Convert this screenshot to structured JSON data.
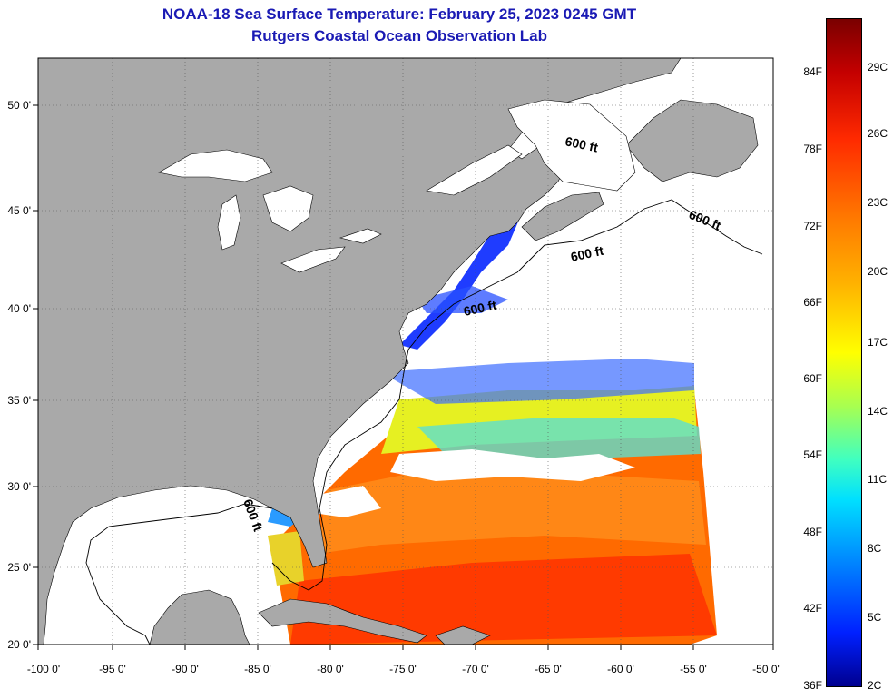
{
  "title": {
    "line1": "NOAA-18 Sea Surface Temperature:  February 25, 2023 0245 GMT",
    "line2": "Rutgers Coastal Ocean Observation Lab"
  },
  "map": {
    "lat_labels": [
      "50 0'",
      "45 0'",
      "40 0'",
      "35 0'",
      "30 0'",
      "25 0'",
      "20 0'"
    ],
    "lon_labels": [
      "-100 0'",
      "-95 0'",
      "-90 0'",
      "-85 0'",
      "-80 0'",
      "-75 0'",
      "-70 0'",
      "-65 0'",
      "-60 0'",
      "-55 0'",
      "-50 0'"
    ],
    "isobath_label": "600 ft",
    "colors": {
      "land": "#a9a9a9",
      "cloud": "#ffffff",
      "grid": "#555555"
    }
  },
  "colorbar": {
    "fahrenheit": [
      "84F",
      "78F",
      "72F",
      "66F",
      "60F",
      "54F",
      "48F",
      "42F",
      "36F"
    ],
    "celsius": [
      "29C",
      "26C",
      "23C",
      "20C",
      "17C",
      "14C",
      "11C",
      "8C",
      "5C",
      "2C"
    ]
  }
}
